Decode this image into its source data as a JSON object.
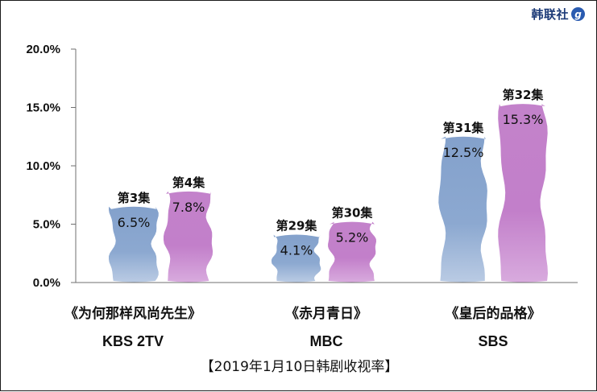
{
  "brand": {
    "name": "韩联社",
    "icon": "g"
  },
  "caption": "【2019年1月10日韩剧收视率】",
  "colors": {
    "blue": "#7f9fcc",
    "purple": "#be7dc6",
    "axis": "#6f6f6f",
    "text": "#111111"
  },
  "chart_data": {
    "type": "bar",
    "title": "",
    "xlabel": "",
    "ylabel": "",
    "ylim": [
      0,
      20
    ],
    "yticks": [
      "0.0%",
      "5.0%",
      "10.0%",
      "15.0%",
      "20.0%"
    ],
    "grid": false,
    "groups": [
      {
        "show": "《为何那样风尚先生》",
        "network": "KBS 2TV",
        "bars": [
          {
            "episode": "第3集",
            "value": 6.5,
            "label": "6.5%",
            "color": "blue"
          },
          {
            "episode": "第4集",
            "value": 7.8,
            "label": "7.8%",
            "color": "purple"
          }
        ]
      },
      {
        "show": "《赤月青日》",
        "network": "MBC",
        "bars": [
          {
            "episode": "第29集",
            "value": 4.1,
            "label": "4.1%",
            "color": "blue"
          },
          {
            "episode": "第30集",
            "value": 5.2,
            "label": "5.2%",
            "color": "purple"
          }
        ]
      },
      {
        "show": "《皇后的品格》",
        "network": "SBS",
        "bars": [
          {
            "episode": "第31集",
            "value": 12.5,
            "label": "12.5%",
            "color": "blue"
          },
          {
            "episode": "第32集",
            "value": 15.3,
            "label": "15.3%",
            "color": "purple"
          }
        ]
      }
    ]
  }
}
